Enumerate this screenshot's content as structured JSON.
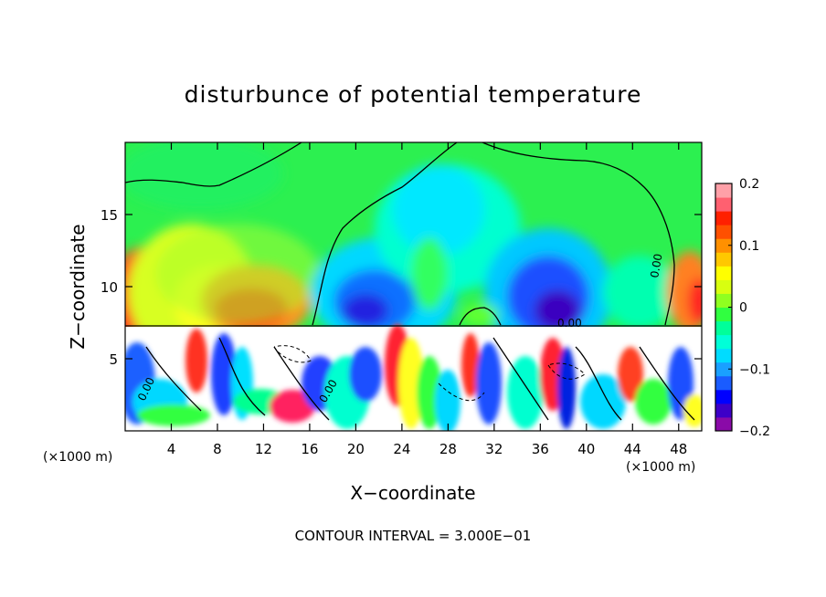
{
  "chart_data": {
    "type": "heatmap",
    "title": "disturbunce of potential temperature",
    "xlabel": "X−coordinate",
    "ylabel": "Z−coordinate",
    "x_unit_left": "(×1000 m)",
    "x_unit_right": "(×1000 m)",
    "footer": "CONTOUR INTERVAL = 3.000E−01",
    "xlim": [
      0,
      50
    ],
    "ylim": [
      0,
      20
    ],
    "x_ticks": [
      "4",
      "8",
      "12",
      "16",
      "20",
      "24",
      "28",
      "32",
      "36",
      "40",
      "44",
      "48"
    ],
    "x_tick_values": [
      4,
      8,
      12,
      16,
      20,
      24,
      28,
      32,
      36,
      40,
      44,
      48
    ],
    "y_ticks": [
      "5",
      "10",
      "15"
    ],
    "y_tick_values": [
      5,
      10,
      15
    ],
    "colorbar": {
      "range": [
        -0.2,
        0.2
      ],
      "tick_labels": [
        "0.2",
        "0.1",
        "0",
        "−0.1",
        "−0.2"
      ],
      "tick_values": [
        0.2,
        0.1,
        0,
        -0.1,
        -0.2
      ],
      "colors": [
        "#8a0aa8",
        "#3d00c8",
        "#0000ff",
        "#1a5cff",
        "#1aa0ff",
        "#00dcff",
        "#00ffd8",
        "#00ff9a",
        "#30ff40",
        "#90ff20",
        "#d8ff10",
        "#ffff00",
        "#ffc800",
        "#ff9000",
        "#ff5000",
        "#ff2000",
        "#ff6070",
        "#ffa0a8"
      ]
    },
    "contour_labels": [
      "0.00",
      "0.00",
      "0.00",
      "0.00"
    ],
    "inversion_height": 7.3
  }
}
